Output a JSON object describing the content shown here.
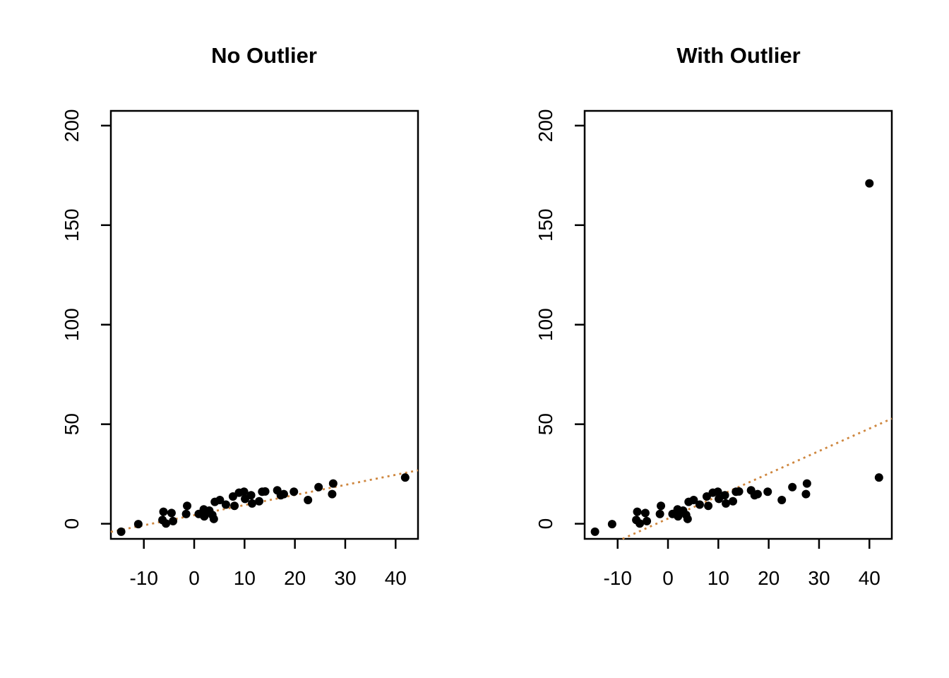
{
  "figure": {
    "background": "#ffffff",
    "point_color": "#000000",
    "axis_color": "#000000"
  },
  "chart_data": [
    {
      "type": "scatter",
      "title": "No Outlier",
      "xlabel": "",
      "ylabel": "",
      "xlim": [
        -16.55,
        44.45
      ],
      "ylim": [
        -7.6,
        207.4
      ],
      "xticks": [
        -10,
        0,
        10,
        20,
        30,
        40
      ],
      "yticks": [
        0,
        50,
        100,
        150,
        200
      ],
      "grid": false,
      "legend": "none",
      "point_color": "#000000",
      "fit_line": {
        "slope": 0.507,
        "intercept": 4.3,
        "color": "#CE863E",
        "style": "dotted"
      },
      "points": [
        [
          -14.5,
          -4.0
        ],
        [
          -11.1,
          -0.2
        ],
        [
          -6.3,
          1.9
        ],
        [
          -6.1,
          6.0
        ],
        [
          -5.6,
          0.1
        ],
        [
          -4.5,
          5.4
        ],
        [
          -4.2,
          1.3
        ],
        [
          -1.6,
          4.9
        ],
        [
          -1.4,
          9.0
        ],
        [
          0.9,
          4.9
        ],
        [
          1.9,
          7.2
        ],
        [
          2.0,
          3.7
        ],
        [
          3.0,
          6.6
        ],
        [
          3.6,
          4.4
        ],
        [
          3.9,
          2.4
        ],
        [
          4.1,
          11.0
        ],
        [
          5.1,
          11.9
        ],
        [
          6.3,
          9.6
        ],
        [
          7.7,
          13.7
        ],
        [
          8.0,
          9.0
        ],
        [
          8.9,
          15.6
        ],
        [
          9.9,
          16.1
        ],
        [
          10.1,
          12.5
        ],
        [
          11.3,
          14.3
        ],
        [
          11.5,
          10.2
        ],
        [
          12.9,
          11.3
        ],
        [
          13.5,
          16.1
        ],
        [
          14.1,
          16.2
        ],
        [
          16.5,
          16.8
        ],
        [
          17.2,
          14.3
        ],
        [
          17.8,
          14.9
        ],
        [
          19.8,
          16.1
        ],
        [
          22.6,
          11.9
        ],
        [
          24.7,
          18.4
        ],
        [
          27.4,
          14.9
        ],
        [
          27.6,
          20.2
        ],
        [
          41.9,
          23.2
        ]
      ]
    },
    {
      "type": "scatter",
      "title": "With Outlier",
      "xlabel": "",
      "ylabel": "",
      "xlim": [
        -16.55,
        44.45
      ],
      "ylim": [
        -7.6,
        207.4
      ],
      "xticks": [
        -10,
        0,
        10,
        20,
        30,
        40
      ],
      "yticks": [
        0,
        50,
        100,
        150,
        200
      ],
      "grid": false,
      "legend": "none",
      "point_color": "#000000",
      "fit_line": {
        "slope": 1.13,
        "intercept": 2.6,
        "color": "#CE863E",
        "style": "dotted"
      },
      "outlier": [
        40.0,
        171.0
      ],
      "points": [
        [
          -14.5,
          -4.0
        ],
        [
          -11.1,
          -0.2
        ],
        [
          -6.3,
          1.9
        ],
        [
          -6.1,
          6.0
        ],
        [
          -5.6,
          0.1
        ],
        [
          -4.5,
          5.4
        ],
        [
          -4.2,
          1.3
        ],
        [
          -1.6,
          4.9
        ],
        [
          -1.4,
          9.0
        ],
        [
          0.9,
          4.9
        ],
        [
          1.9,
          7.2
        ],
        [
          2.0,
          3.7
        ],
        [
          3.0,
          6.6
        ],
        [
          3.6,
          4.4
        ],
        [
          3.9,
          2.4
        ],
        [
          4.1,
          11.0
        ],
        [
          5.1,
          11.9
        ],
        [
          6.3,
          9.6
        ],
        [
          7.7,
          13.7
        ],
        [
          8.0,
          9.0
        ],
        [
          8.9,
          15.6
        ],
        [
          9.9,
          16.1
        ],
        [
          10.1,
          12.5
        ],
        [
          11.3,
          14.3
        ],
        [
          11.5,
          10.2
        ],
        [
          12.9,
          11.3
        ],
        [
          13.5,
          16.1
        ],
        [
          14.1,
          16.2
        ],
        [
          16.5,
          16.8
        ],
        [
          17.2,
          14.3
        ],
        [
          17.8,
          14.9
        ],
        [
          19.8,
          16.1
        ],
        [
          22.6,
          11.9
        ],
        [
          24.7,
          18.4
        ],
        [
          27.4,
          14.9
        ],
        [
          27.6,
          20.2
        ],
        [
          41.9,
          23.2
        ],
        [
          40.0,
          171.0
        ]
      ]
    }
  ]
}
